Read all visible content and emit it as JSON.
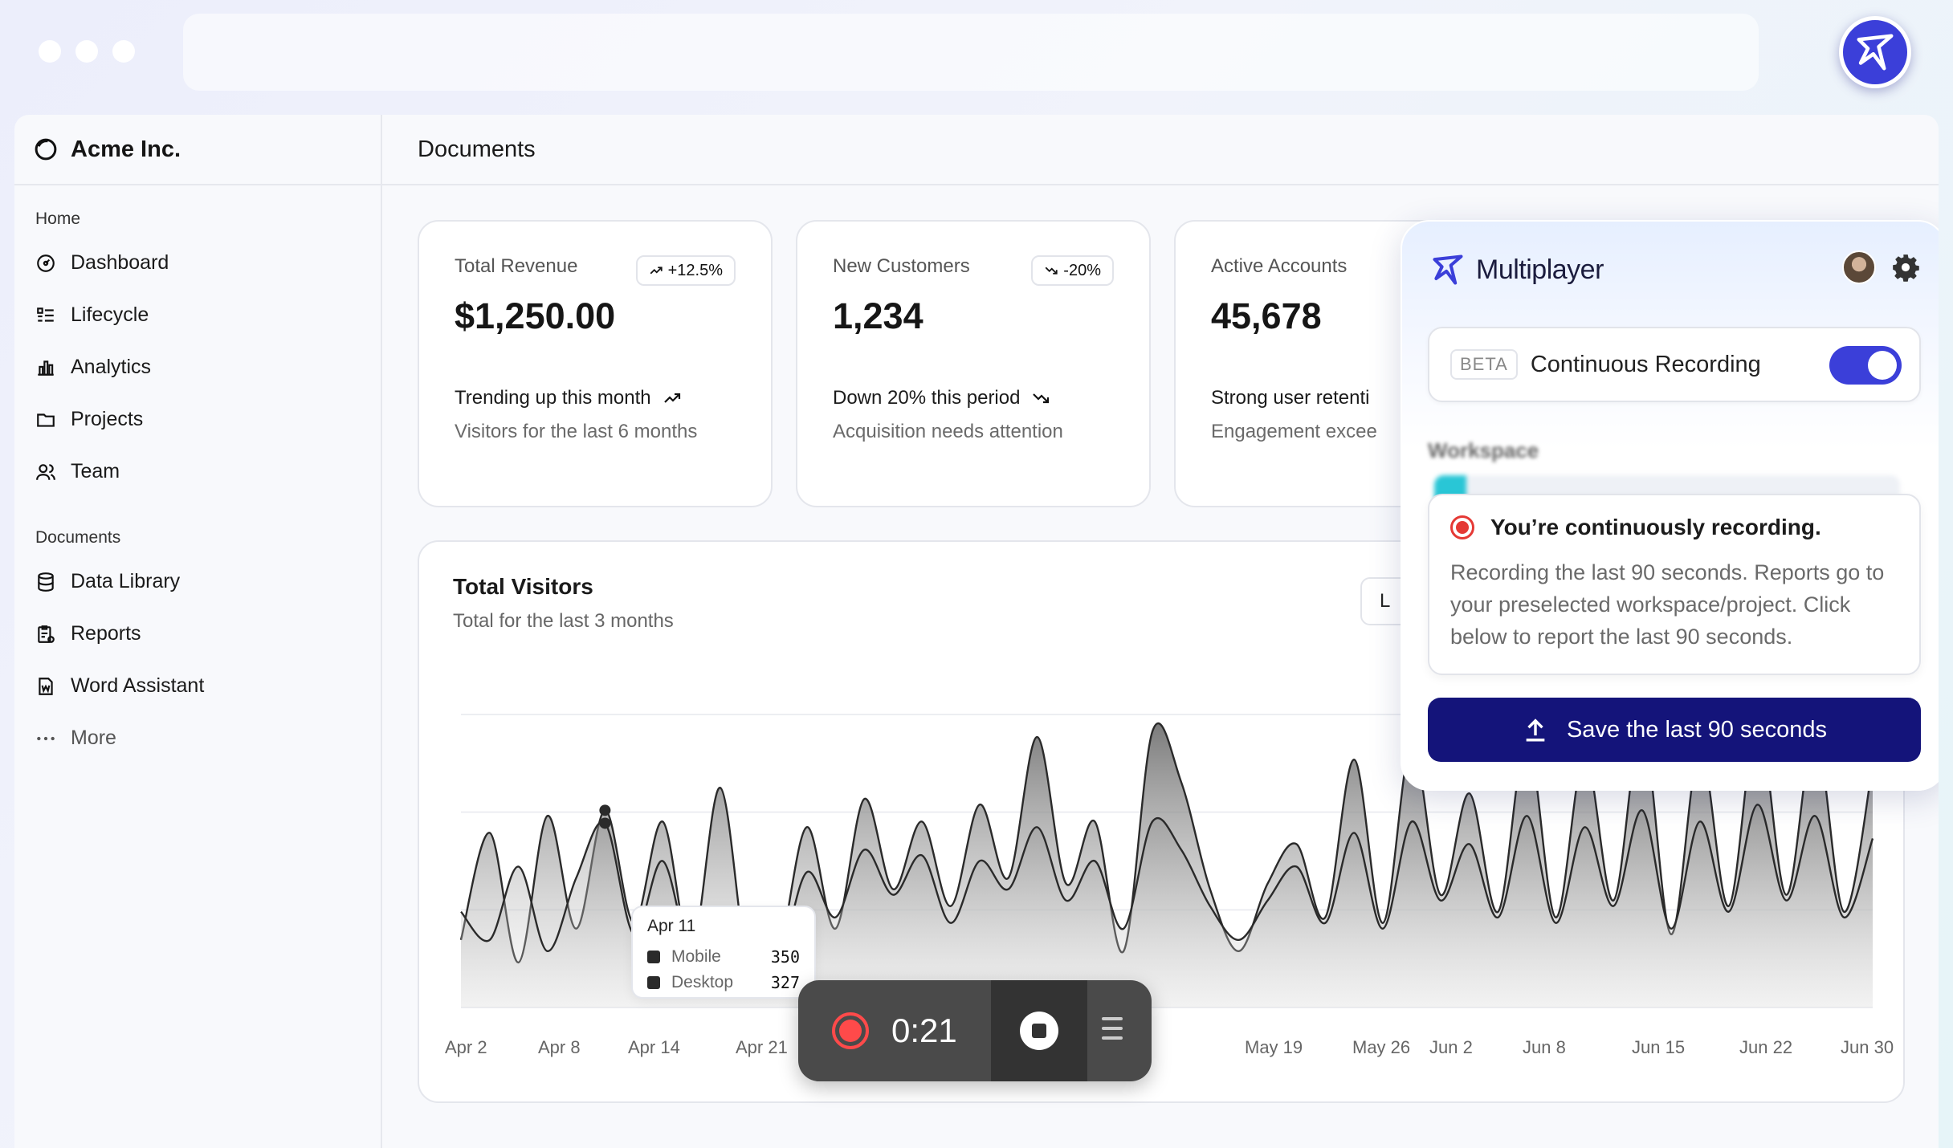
{
  "window": {
    "extension_icon": "multiplayer-star-icon"
  },
  "sidebar": {
    "brand": "Acme Inc.",
    "home_label": "Home",
    "home_items": [
      {
        "label": "Dashboard",
        "icon": "gauge-icon"
      },
      {
        "label": "Lifecycle",
        "icon": "list-icon"
      },
      {
        "label": "Analytics",
        "icon": "bar-chart-icon"
      },
      {
        "label": "Projects",
        "icon": "folder-icon"
      },
      {
        "label": "Team",
        "icon": "users-icon"
      }
    ],
    "documents_label": "Documents",
    "document_items": [
      {
        "label": "Data Library",
        "icon": "database-icon"
      },
      {
        "label": "Reports",
        "icon": "report-icon"
      },
      {
        "label": "Word Assistant",
        "icon": "file-word-icon"
      }
    ],
    "more_label": "More"
  },
  "main": {
    "title": "Documents",
    "cards": [
      {
        "label": "Total Revenue",
        "badge": "+12.5%",
        "badge_dir": "up",
        "value": "$1,250.00",
        "trend": "Trending up this month",
        "sub": "Visitors for the last 6 months"
      },
      {
        "label": "New Customers",
        "badge": "-20%",
        "badge_dir": "down",
        "value": "1,234",
        "trend": "Down 20% this period",
        "sub": "Acquisition needs attention"
      },
      {
        "label": "Active Accounts",
        "value": "45,678",
        "trend": "Strong user retenti",
        "sub": "Engagement excee"
      }
    ],
    "chart_title": "Total Visitors",
    "chart_subtitle": "Total for the last 3 months",
    "range_button": "L",
    "tooltip": {
      "date": "Apr 11",
      "rows": [
        {
          "name": "Mobile",
          "value": "350"
        },
        {
          "name": "Desktop",
          "value": "327"
        }
      ]
    }
  },
  "chart_data": {
    "type": "area",
    "x_ticks": [
      "Apr 2",
      "Apr 8",
      "Apr 14",
      "Apr 21",
      "May 19",
      "May 26",
      "Jun 2",
      "Jun 8",
      "Jun 15",
      "Jun 22",
      "Jun 30"
    ],
    "grid": true,
    "legend": "tooltip",
    "series": [
      {
        "name": "Mobile",
        "values": [
          120,
          310,
          80,
          340,
          140,
          350,
          150,
          330,
          100,
          390,
          60,
          90,
          320,
          140,
          370,
          210,
          330,
          180,
          360,
          230,
          480,
          220,
          330,
          100,
          490,
          400,
          210,
          100,
          220,
          290,
          160,
          440,
          150,
          470,
          200,
          380,
          170,
          480,
          160,
          450,
          190,
          500,
          130,
          460,
          180,
          510,
          200,
          490,
          170,
          430
        ]
      },
      {
        "name": "Desktop",
        "values": [
          170,
          120,
          250,
          100,
          230,
          327,
          130,
          260,
          90,
          150,
          110,
          80,
          240,
          160,
          280,
          200,
          270,
          150,
          260,
          210,
          320,
          190,
          260,
          140,
          330,
          280,
          180,
          120,
          190,
          250,
          150,
          310,
          140,
          330,
          190,
          290,
          160,
          340,
          150,
          320,
          180,
          350,
          140,
          330,
          170,
          360,
          190,
          340,
          160,
          300
        ]
      }
    ]
  },
  "recorder": {
    "time": "0:21"
  },
  "panel": {
    "brand": "Multiplayer",
    "beta": "BETA",
    "toggle_label": "Continuous Recording",
    "toggle_on": true,
    "workspace_label": "Workspace",
    "notice_title": "You’re continuously recording.",
    "notice_body": "Recording the last 90 seconds. Reports go to your preselected workspace/project. Click below to report the last 90 seconds.",
    "save_label": "Save the last 90 seconds"
  },
  "colors": {
    "accent": "#3b3fd9",
    "save_button": "#14147a",
    "record_red": "#e53935"
  }
}
